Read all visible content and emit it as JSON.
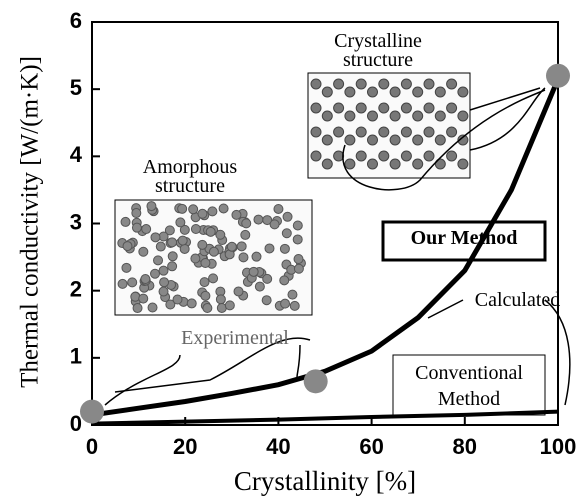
{
  "chart_data": {
    "type": "line",
    "xlabel": "Crystallinity [%]",
    "ylabel": "Thermal conductivity [W/(m·K)]",
    "xlim": [
      0,
      100
    ],
    "xticks": [
      0,
      20,
      40,
      60,
      80,
      100
    ],
    "ylim": [
      0,
      6
    ],
    "yticks": [
      0,
      1,
      2,
      3,
      4,
      5,
      6
    ],
    "series": [
      {
        "name": "Our Method",
        "color": "#000000",
        "kind": "line",
        "x": [
          0,
          10,
          20,
          30,
          40,
          50,
          60,
          70,
          80,
          90,
          100
        ],
        "values": [
          0.15,
          0.25,
          0.35,
          0.47,
          0.6,
          0.8,
          1.1,
          1.6,
          2.3,
          3.5,
          5.15
        ]
      },
      {
        "name": "Conventional Method",
        "color": "#000000",
        "kind": "line",
        "x": [
          0,
          20,
          40,
          60,
          80,
          100
        ],
        "values": [
          0.02,
          0.05,
          0.08,
          0.12,
          0.15,
          0.2
        ]
      },
      {
        "name": "Experimental",
        "color": "#888888",
        "kind": "scatter",
        "x": [
          0,
          48,
          100
        ],
        "values": [
          0.2,
          0.65,
          5.2
        ]
      }
    ],
    "annotations": [
      "Calculated",
      "Crystalline structure",
      "Amorphous structure"
    ]
  }
}
